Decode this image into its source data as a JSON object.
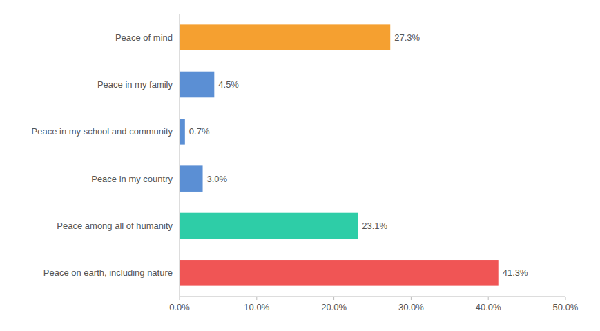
{
  "chart_data": {
    "type": "bar",
    "orientation": "horizontal",
    "categories": [
      "Peace on earth, including nature",
      "Peace among all of humanity",
      "Peace in my country",
      "Peace in my school and community",
      "Peace in my family",
      "Peace of mind"
    ],
    "values": [
      41.3,
      23.1,
      3.0,
      0.7,
      4.5,
      27.3
    ],
    "value_labels": [
      "41.3%",
      "23.1%",
      "3.0%",
      "0.7%",
      "4.5%",
      "27.3%"
    ],
    "colors": [
      "#f05555",
      "#2ecda7",
      "#5b8fd4",
      "#5b8fd4",
      "#5b8fd4",
      "#f5a030"
    ],
    "xlim": [
      0,
      50
    ],
    "xticks": [
      {
        "value": 0,
        "label": "0.0%"
      },
      {
        "value": 10,
        "label": "10.0%"
      },
      {
        "value": 20,
        "label": "20.0%"
      },
      {
        "value": 30,
        "label": "30.0%"
      },
      {
        "value": 40,
        "label": "40.0%"
      },
      {
        "value": 50,
        "label": "50.0%"
      }
    ],
    "data_labels": true,
    "grid": false
  }
}
